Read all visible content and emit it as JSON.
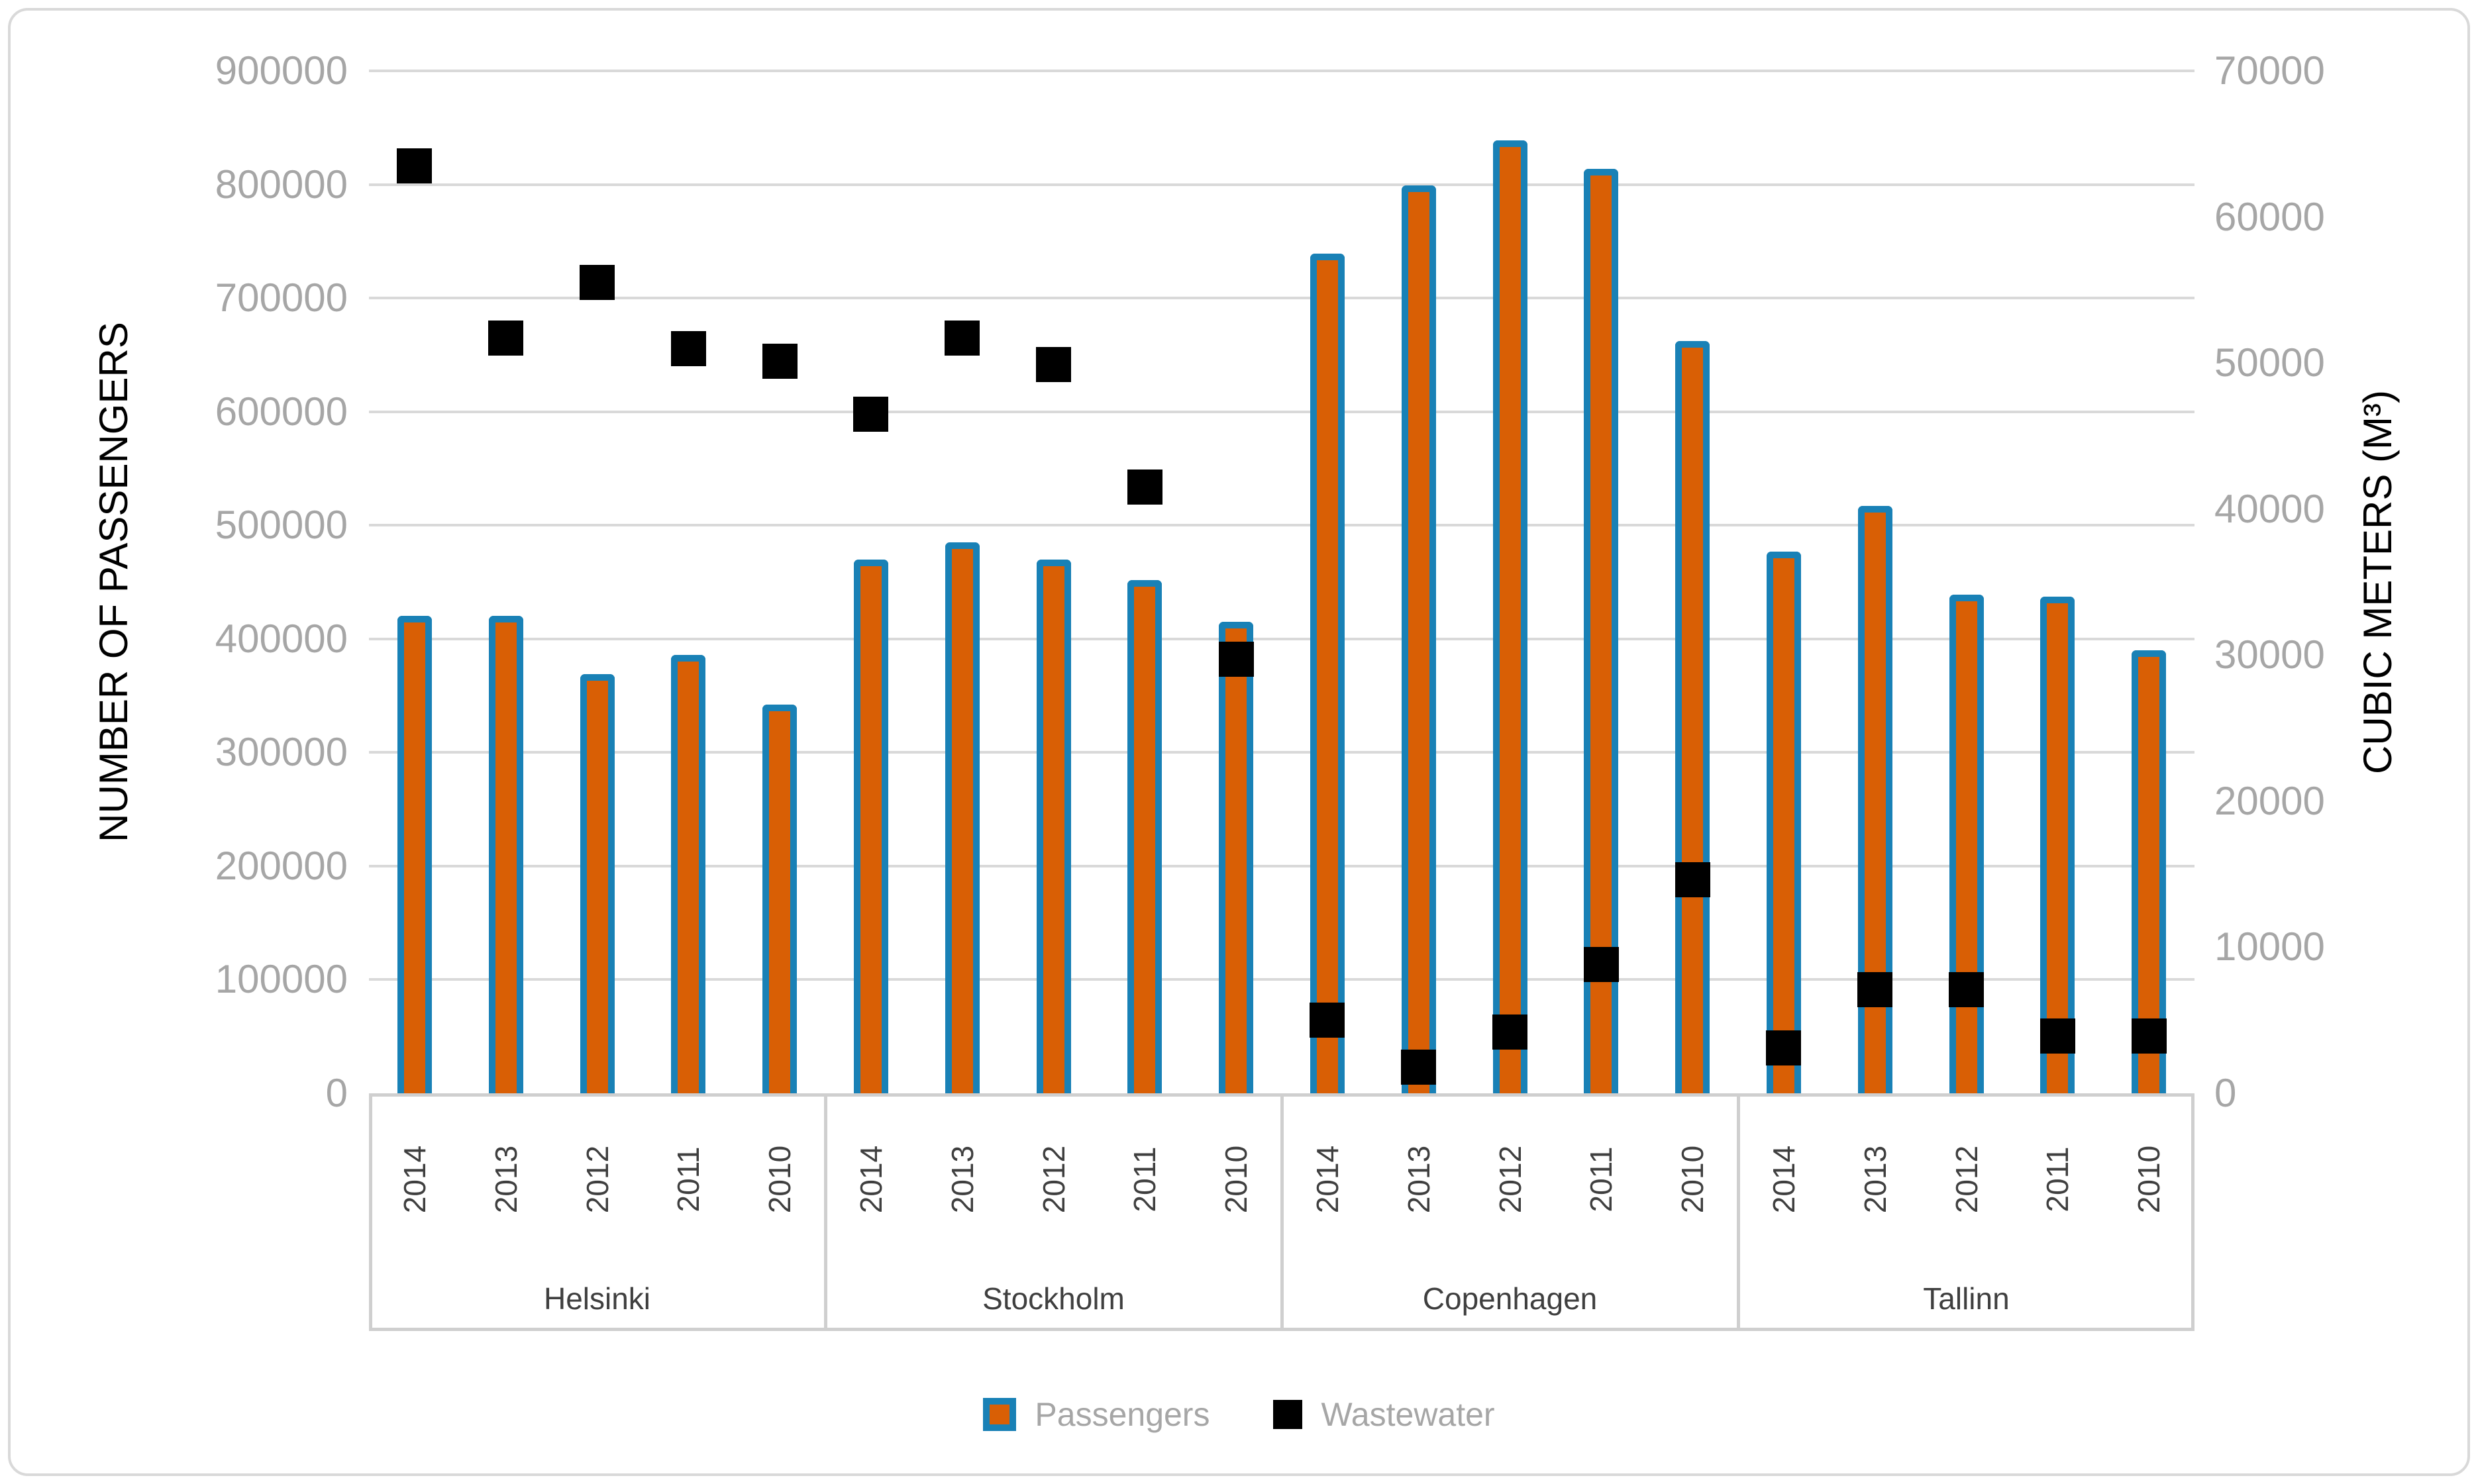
{
  "chart_data": {
    "type": "bar",
    "title": "",
    "groups": [
      "Helsinki",
      "Stockholm",
      "Copenhagen",
      "Tallinn"
    ],
    "years": [
      "2014",
      "2013",
      "2012",
      "2011",
      "2010"
    ],
    "series": [
      {
        "name": "Passengers",
        "type": "bar",
        "axis": "left",
        "fill_color": "#D95F05",
        "border_color": "#1981B6",
        "values": [
          [
            420000,
            420000,
            369000,
            386000,
            342000
          ],
          [
            470000,
            485000,
            470000,
            452000,
            415000
          ],
          [
            739000,
            799000,
            839000,
            814000,
            662000
          ],
          [
            477000,
            517000,
            439000,
            437000,
            390000
          ]
        ]
      },
      {
        "name": "Wastewater",
        "type": "scatter-square",
        "axis": "right",
        "fill_color": "#000000",
        "values": [
          [
            63500,
            51700,
            55500,
            51000,
            50100
          ],
          [
            46500,
            51700,
            49900,
            41500,
            29700
          ],
          [
            5000,
            1800,
            4200,
            8800,
            14600
          ],
          [
            3100,
            7100,
            7100,
            3900,
            3900
          ]
        ]
      }
    ],
    "left_axis": {
      "title": "NUMBER OF PASSENGERS",
      "min": 0,
      "max": 900000,
      "step": 100000,
      "ticks": [
        "0",
        "100000",
        "200000",
        "300000",
        "400000",
        "500000",
        "600000",
        "700000",
        "800000",
        "900000"
      ]
    },
    "right_axis": {
      "title": "CUBIC METERS (M³)",
      "min": 0,
      "max": 70000,
      "step": 10000,
      "ticks": [
        "0",
        "10000",
        "20000",
        "30000",
        "40000",
        "50000",
        "60000",
        "70000"
      ]
    },
    "legend": {
      "position": "bottom",
      "entries": [
        "Passengers",
        "Wastewater"
      ]
    },
    "grid": "horizontal",
    "colors": {
      "gridline": "#D9D9D9",
      "axis_box": "#CFCFCF",
      "tick_text": "#A6A6A6",
      "category_text": "#3F3F3F",
      "title_text": "#000000",
      "frame_border": "#D9D9D9",
      "background": "#FFFFFF"
    }
  }
}
